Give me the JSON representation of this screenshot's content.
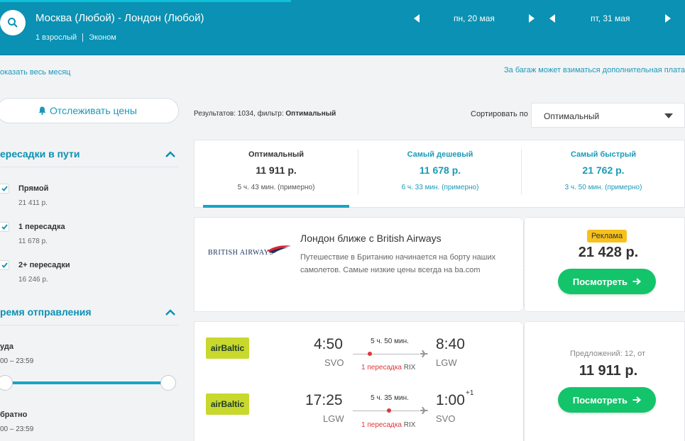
{
  "header": {
    "route": "Москва (Любой) - Лондон (Любой)",
    "passengers": "1 взрослый",
    "cabin": "Эконом",
    "date_out": "пн, 20 мая",
    "date_back": "пт, 31 мая"
  },
  "links": {
    "show_month": "оказать весь месяц",
    "baggage_note": "За багаж может взиматься дополнительная плата"
  },
  "sidebar": {
    "track_prices": "Отслеживать цены",
    "stops_title": "ересадки в пути",
    "stops": [
      {
        "label": "Прямой",
        "price": "21 411 р.",
        "checked": true
      },
      {
        "label": "1 пересадка",
        "price": "11 678 р.",
        "checked": true
      },
      {
        "label": "2+ пересадки",
        "price": "16 246 р.",
        "checked": true
      }
    ],
    "time_title": "ремя отправления",
    "there_label": "уда",
    "there_range": "00 – 23:59",
    "back_label": "братно",
    "back_range": "00 – 23:59"
  },
  "results": {
    "count_prefix": "Результатов: 1034, фильтр:",
    "filter": "Оптимальный",
    "sort_label": "Сортировать по",
    "sort_value": "Оптимальный"
  },
  "tabs": [
    {
      "label": "Оптимальный",
      "price": "11 911 р.",
      "time": "5 ч. 43 мин. (примерно)",
      "active": true
    },
    {
      "label": "Самый дешевый",
      "price": "11 678 р.",
      "time": "6 ч. 33 мин. (примерно)",
      "active": false
    },
    {
      "label": "Самый быстрый",
      "price": "21 762 р.",
      "time": "3 ч. 50 мин. (примерно)",
      "active": false
    }
  ],
  "ad": {
    "logo_text": "BRITISH AIRWAYS",
    "title": "Лондон ближе с British Airways",
    "text": "Путешествие в Британию начинается на борту наших самолетов. Самые низкие цены всегда на ba.com",
    "badge": "Реклама",
    "price": "21 428 р.",
    "button": "Посмотреть"
  },
  "flight": {
    "offers": "Предложений: 12, от",
    "price": "11 911 р.",
    "button": "Посмотреть",
    "legs": [
      {
        "airline": "airBaltic",
        "dep_time": "4:50",
        "dep_airport": "SVO",
        "duration": "5 ч. 50 мин.",
        "stops": "1 пересадка",
        "via": "RIX",
        "arr_time": "8:40",
        "arr_airport": "LGW",
        "day_shift": ""
      },
      {
        "airline": "airBaltic",
        "dep_time": "17:25",
        "dep_airport": "LGW",
        "duration": "5 ч. 35 мин.",
        "stops": "1 пересадка",
        "via": "RIX",
        "arr_time": "1:00",
        "arr_airport": "SVO",
        "day_shift": "+1"
      }
    ]
  },
  "colors": {
    "header": "#0a91b3",
    "accent": "#1a9ab8",
    "green": "#13c46b",
    "stop_red": "#e0353b",
    "ad_badge": "#f7c11c"
  }
}
